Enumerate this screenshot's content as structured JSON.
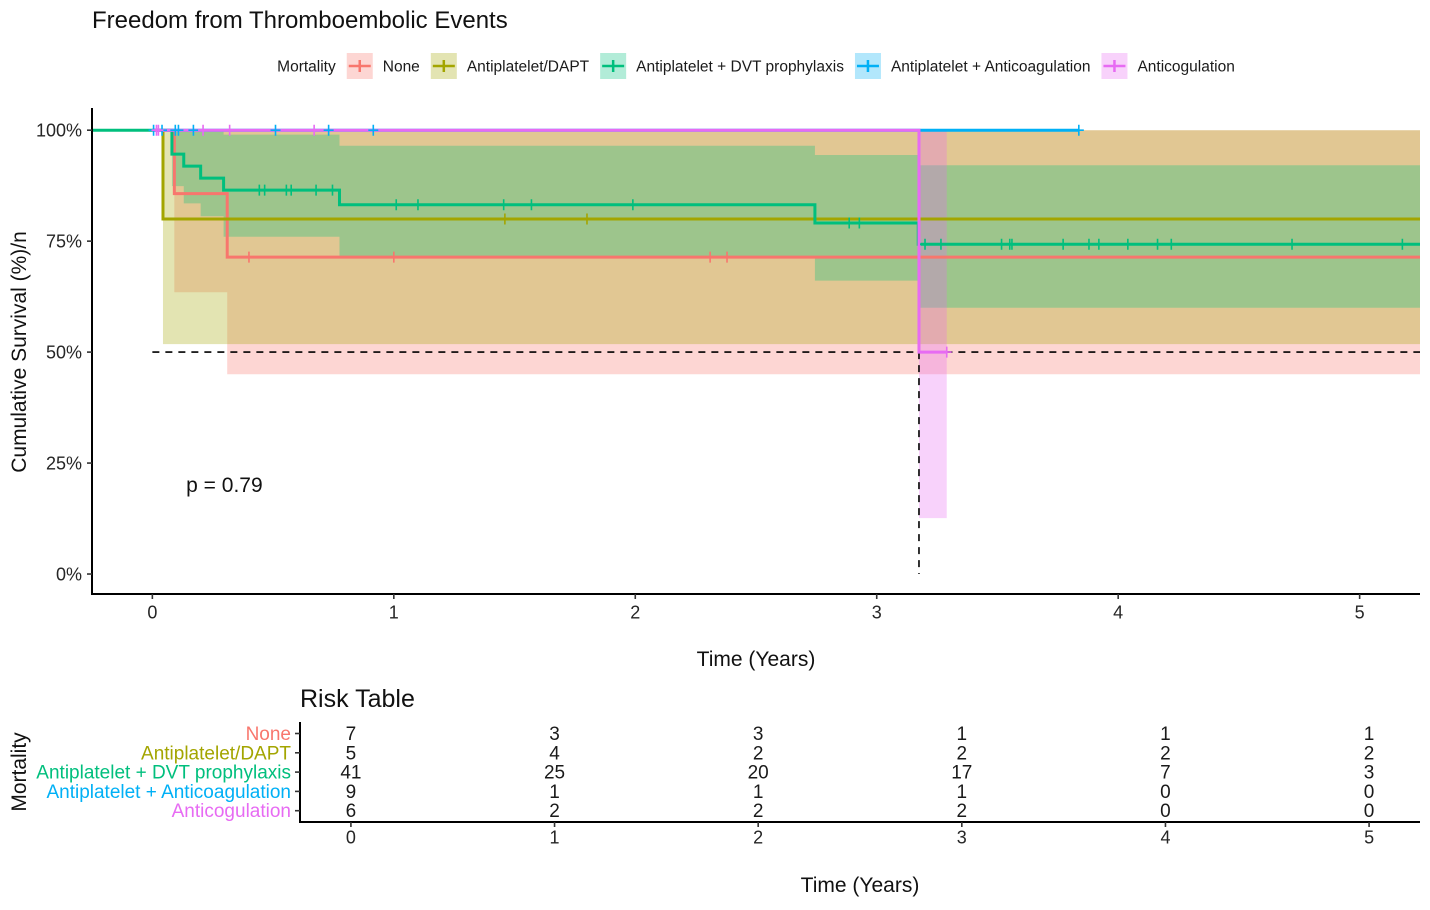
{
  "chart_data": [
    {
      "type": "line",
      "subtype": "kaplan-meier",
      "title": "Freedom from Thromboembolic Events",
      "xlabel": "Time (Years)",
      "ylabel": "Cumulative Survival (%)/n",
      "xlim": [
        -0.25,
        5.25
      ],
      "ylim": [
        -4.5,
        105
      ],
      "xticks": [
        0,
        1,
        2,
        3,
        4,
        5
      ],
      "xtick_labels": [
        "0",
        "1",
        "2",
        "3",
        "4",
        "5"
      ],
      "yticks": [
        0,
        25,
        50,
        75,
        100
      ],
      "ytick_labels": [
        "0%",
        "25%",
        "50%",
        "75%",
        "100%"
      ],
      "grid": false,
      "legend": {
        "title": "Mortality",
        "position": "top"
      },
      "annotations": [
        {
          "text": "p = 0.79",
          "x": 0.14,
          "y": 18.5
        }
      ],
      "median_reference": {
        "survival": 50,
        "x_from": 0,
        "median_time": 3.175
      },
      "series": [
        {
          "name": "None",
          "color": "#F8766D",
          "steps": [
            [
              0,
              100
            ],
            [
              0.091,
              85.7
            ],
            [
              0.31,
              71.4
            ]
          ],
          "end": 5.25,
          "censors": [
            0.4,
            1.0,
            2.31,
            2.38
          ],
          "ci": [
            [
              0.091,
              0.31,
              63.5,
              100
            ],
            [
              0.31,
              5.25,
              45.0,
              100
            ]
          ]
        },
        {
          "name": "Antiplatelet/DAPT",
          "color": "#A3A500",
          "steps": [
            [
              0,
              100
            ],
            [
              0.044,
              80.0
            ]
          ],
          "end": 5.25,
          "censors": [
            1.46,
            1.8
          ],
          "ci": [
            [
              0.044,
              5.25,
              51.8,
              100
            ]
          ]
        },
        {
          "name": "Antiplatelet + DVT prophylaxis",
          "color": "#00BF7D",
          "steps": [
            [
              -0.25,
              100
            ],
            [
              0.081,
              94.6
            ],
            [
              0.13,
              91.9
            ],
            [
              0.2,
              89.2
            ],
            [
              0.295,
              86.5
            ],
            [
              0.775,
              83.2
            ],
            [
              2.744,
              79.1
            ],
            [
              3.172,
              74.3
            ]
          ],
          "end": 5.25,
          "censors": [
            0.443,
            0.465,
            0.555,
            0.575,
            0.678,
            0.746,
            1.01,
            1.1,
            1.455,
            1.57,
            1.99,
            2.886,
            2.928,
            3.2,
            3.266,
            3.517,
            3.551,
            3.56,
            3.772,
            3.879,
            3.92,
            4.04,
            4.163,
            4.22,
            4.72,
            5.177
          ],
          "ci": [
            [
              0.081,
              0.13,
              87.4,
              100
            ],
            [
              0.13,
              0.2,
              83.5,
              100
            ],
            [
              0.2,
              0.295,
              80.6,
              100
            ],
            [
              0.295,
              0.775,
              76.0,
              99.0
            ],
            [
              0.775,
              2.744,
              71.6,
              96.5
            ],
            [
              2.744,
              3.172,
              66.1,
              94.4
            ],
            [
              3.172,
              5.25,
              60.0,
              92.1
            ]
          ]
        },
        {
          "name": "Antiplatelet + Anticoagulation",
          "color": "#00B0F6",
          "steps": [
            [
              0,
              100
            ]
          ],
          "end": 3.837,
          "censors": [
            0.005,
            0.04,
            0.095,
            0.108,
            0.17,
            0.51,
            0.73,
            0.915,
            3.837
          ],
          "ci": []
        },
        {
          "name": "Anticogulation",
          "color": "#E76BF3",
          "steps": [
            [
              0,
              100
            ],
            [
              3.175,
              50
            ]
          ],
          "end": 3.29,
          "censors": [
            0.017,
            0.025,
            0.21,
            0.32,
            0.67,
            3.29
          ],
          "ci": [
            [
              3.175,
              3.29,
              12.6,
              100
            ]
          ]
        }
      ]
    },
    {
      "type": "table",
      "title": "Risk Table",
      "ylabel": "Mortality",
      "xlabel": "Time (Years)",
      "xlim": [
        -0.25,
        5.25
      ],
      "xticks": [
        0,
        1,
        2,
        3,
        4,
        5
      ],
      "xtick_labels": [
        "0",
        "1",
        "2",
        "3",
        "4",
        "5"
      ],
      "rows": [
        {
          "name": "None",
          "color": "#F8766D",
          "values": [
            7,
            3,
            3,
            1,
            1,
            1
          ]
        },
        {
          "name": "Antiplatelet/DAPT",
          "color": "#A3A500",
          "values": [
            5,
            4,
            2,
            2,
            2,
            2
          ]
        },
        {
          "name": "Antiplatelet + DVT prophylaxis",
          "color": "#00BF7D",
          "values": [
            41,
            25,
            20,
            17,
            7,
            3
          ]
        },
        {
          "name": "Antiplatelet + Anticoagulation",
          "color": "#00B0F6",
          "values": [
            9,
            1,
            1,
            1,
            0,
            0
          ]
        },
        {
          "name": "Anticogulation",
          "color": "#E76BF3",
          "values": [
            6,
            2,
            2,
            2,
            0,
            0
          ]
        }
      ]
    }
  ]
}
